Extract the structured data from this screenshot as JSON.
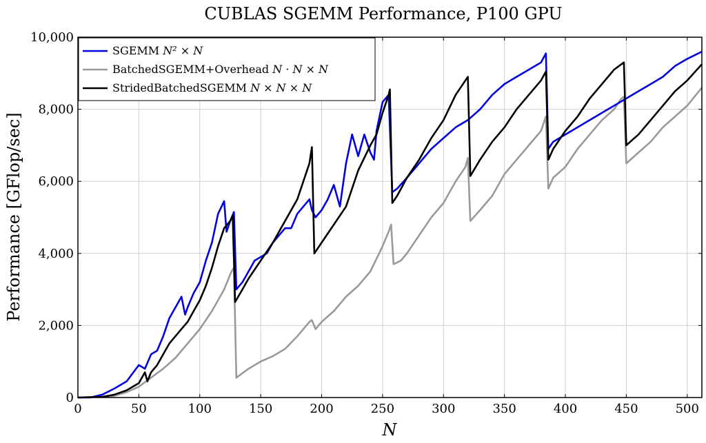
{
  "chart_data": {
    "type": "line",
    "title": "CUBLAS SGEMM Performance, P100 GPU",
    "xlabel": "N",
    "ylabel": "Performance [GFlop/sec]",
    "xlim": [
      0,
      512
    ],
    "ylim": [
      0,
      10000
    ],
    "xticks": [
      0,
      50,
      100,
      150,
      200,
      250,
      300,
      350,
      400,
      450,
      500
    ],
    "yticks": [
      0,
      2000,
      4000,
      6000,
      8000,
      10000
    ],
    "xtick_labels": [
      "0",
      "50",
      "100",
      "150",
      "200",
      "250",
      "300",
      "350",
      "400",
      "450",
      "500"
    ],
    "ytick_labels": [
      "0",
      "2,000",
      "4,000",
      "6,000",
      "8,000",
      "10,000"
    ],
    "grid": true,
    "legend_position": "top-left",
    "series": [
      {
        "name": "SGEMM N² × N",
        "name_plain": "SGEMM ",
        "name_math": "N² × N",
        "color": "#0000e0",
        "points": [
          [
            0,
            0
          ],
          [
            10,
            0
          ],
          [
            20,
            80
          ],
          [
            30,
            250
          ],
          [
            40,
            450
          ],
          [
            50,
            900
          ],
          [
            55,
            800
          ],
          [
            60,
            1200
          ],
          [
            65,
            1300
          ],
          [
            70,
            1700
          ],
          [
            75,
            2200
          ],
          [
            80,
            2500
          ],
          [
            85,
            2800
          ],
          [
            88,
            2300
          ],
          [
            90,
            2500
          ],
          [
            95,
            2900
          ],
          [
            100,
            3200
          ],
          [
            105,
            3800
          ],
          [
            110,
            4300
          ],
          [
            115,
            5100
          ],
          [
            120,
            5450
          ],
          [
            122,
            4600
          ],
          [
            125,
            4900
          ],
          [
            128,
            5150
          ],
          [
            130,
            3000
          ],
          [
            135,
            3200
          ],
          [
            140,
            3500
          ],
          [
            145,
            3800
          ],
          [
            150,
            3900
          ],
          [
            155,
            4000
          ],
          [
            160,
            4300
          ],
          [
            165,
            4500
          ],
          [
            170,
            4700
          ],
          [
            175,
            4700
          ],
          [
            180,
            5100
          ],
          [
            185,
            5300
          ],
          [
            190,
            5500
          ],
          [
            192,
            5200
          ],
          [
            195,
            5000
          ],
          [
            200,
            5200
          ],
          [
            205,
            5500
          ],
          [
            210,
            5900
          ],
          [
            215,
            5300
          ],
          [
            220,
            6500
          ],
          [
            225,
            7300
          ],
          [
            230,
            6700
          ],
          [
            235,
            7300
          ],
          [
            240,
            6800
          ],
          [
            243,
            6600
          ],
          [
            245,
            7400
          ],
          [
            250,
            8200
          ],
          [
            255,
            8400
          ],
          [
            258,
            5700
          ],
          [
            262,
            5800
          ],
          [
            270,
            6100
          ],
          [
            280,
            6500
          ],
          [
            290,
            6900
          ],
          [
            300,
            7200
          ],
          [
            310,
            7500
          ],
          [
            320,
            7700
          ],
          [
            330,
            8000
          ],
          [
            340,
            8400
          ],
          [
            350,
            8700
          ],
          [
            360,
            8900
          ],
          [
            370,
            9100
          ],
          [
            380,
            9300
          ],
          [
            384,
            9550
          ],
          [
            386,
            6900
          ],
          [
            390,
            7100
          ],
          [
            400,
            7300
          ],
          [
            410,
            7500
          ],
          [
            420,
            7700
          ],
          [
            430,
            7900
          ],
          [
            440,
            8100
          ],
          [
            450,
            8300
          ],
          [
            460,
            8500
          ],
          [
            470,
            8700
          ],
          [
            480,
            8900
          ],
          [
            490,
            9200
          ],
          [
            500,
            9400
          ],
          [
            512,
            9600
          ]
        ]
      },
      {
        "name": "BatchedSGEMM+Overhead N · N × N",
        "name_plain": "BatchedSGEMM+Overhead ",
        "name_math": "N · N × N",
        "color": "#999999",
        "points": [
          [
            0,
            0
          ],
          [
            20,
            20
          ],
          [
            30,
            50
          ],
          [
            40,
            150
          ],
          [
            50,
            300
          ],
          [
            60,
            550
          ],
          [
            70,
            800
          ],
          [
            80,
            1100
          ],
          [
            90,
            1500
          ],
          [
            100,
            1900
          ],
          [
            110,
            2400
          ],
          [
            120,
            3000
          ],
          [
            126,
            3500
          ],
          [
            128,
            3600
          ],
          [
            130,
            550
          ],
          [
            140,
            800
          ],
          [
            150,
            1000
          ],
          [
            160,
            1150
          ],
          [
            170,
            1350
          ],
          [
            180,
            1700
          ],
          [
            190,
            2100
          ],
          [
            192,
            2150
          ],
          [
            195,
            1900
          ],
          [
            200,
            2100
          ],
          [
            210,
            2400
          ],
          [
            220,
            2800
          ],
          [
            230,
            3100
          ],
          [
            240,
            3500
          ],
          [
            250,
            4200
          ],
          [
            255,
            4600
          ],
          [
            257,
            4800
          ],
          [
            259,
            3700
          ],
          [
            265,
            3800
          ],
          [
            270,
            4000
          ],
          [
            280,
            4500
          ],
          [
            290,
            5000
          ],
          [
            300,
            5400
          ],
          [
            310,
            6000
          ],
          [
            318,
            6400
          ],
          [
            320,
            6650
          ],
          [
            322,
            4900
          ],
          [
            330,
            5200
          ],
          [
            340,
            5600
          ],
          [
            350,
            6200
          ],
          [
            360,
            6600
          ],
          [
            370,
            7000
          ],
          [
            380,
            7400
          ],
          [
            384,
            7800
          ],
          [
            386,
            5800
          ],
          [
            390,
            6100
          ],
          [
            400,
            6400
          ],
          [
            410,
            6900
          ],
          [
            420,
            7300
          ],
          [
            430,
            7700
          ],
          [
            440,
            8000
          ],
          [
            446,
            8300
          ],
          [
            448,
            8350
          ],
          [
            450,
            6500
          ],
          [
            460,
            6800
          ],
          [
            470,
            7100
          ],
          [
            480,
            7500
          ],
          [
            490,
            7800
          ],
          [
            500,
            8100
          ],
          [
            512,
            8600
          ]
        ]
      },
      {
        "name": "StridedBatchedSGEMM N × N × N",
        "name_plain": "StridedBatchedSGEMM ",
        "name_math": "N × N × N",
        "color": "#000000",
        "points": [
          [
            0,
            0
          ],
          [
            20,
            20
          ],
          [
            30,
            80
          ],
          [
            40,
            200
          ],
          [
            50,
            400
          ],
          [
            55,
            700
          ],
          [
            57,
            450
          ],
          [
            60,
            700
          ],
          [
            65,
            900
          ],
          [
            70,
            1200
          ],
          [
            75,
            1500
          ],
          [
            80,
            1700
          ],
          [
            85,
            1900
          ],
          [
            90,
            2100
          ],
          [
            95,
            2400
          ],
          [
            100,
            2700
          ],
          [
            105,
            3100
          ],
          [
            110,
            3600
          ],
          [
            115,
            4200
          ],
          [
            120,
            4700
          ],
          [
            125,
            4900
          ],
          [
            127,
            5050
          ],
          [
            129,
            2650
          ],
          [
            135,
            3000
          ],
          [
            140,
            3300
          ],
          [
            150,
            3800
          ],
          [
            160,
            4300
          ],
          [
            170,
            4900
          ],
          [
            180,
            5500
          ],
          [
            190,
            6500
          ],
          [
            192,
            6950
          ],
          [
            194,
            4000
          ],
          [
            200,
            4300
          ],
          [
            210,
            4800
          ],
          [
            220,
            5300
          ],
          [
            230,
            6300
          ],
          [
            240,
            7000
          ],
          [
            245,
            7300
          ],
          [
            250,
            7900
          ],
          [
            255,
            8400
          ],
          [
            256,
            8550
          ],
          [
            258,
            5400
          ],
          [
            262,
            5600
          ],
          [
            270,
            6100
          ],
          [
            280,
            6600
          ],
          [
            290,
            7200
          ],
          [
            300,
            7700
          ],
          [
            310,
            8400
          ],
          [
            320,
            8900
          ],
          [
            322,
            6150
          ],
          [
            330,
            6600
          ],
          [
            340,
            7100
          ],
          [
            350,
            7500
          ],
          [
            360,
            8000
          ],
          [
            370,
            8400
          ],
          [
            380,
            8800
          ],
          [
            384,
            9050
          ],
          [
            386,
            6600
          ],
          [
            390,
            6900
          ],
          [
            400,
            7400
          ],
          [
            410,
            7800
          ],
          [
            420,
            8300
          ],
          [
            430,
            8700
          ],
          [
            440,
            9100
          ],
          [
            448,
            9300
          ],
          [
            450,
            7000
          ],
          [
            460,
            7300
          ],
          [
            470,
            7700
          ],
          [
            480,
            8100
          ],
          [
            490,
            8500
          ],
          [
            500,
            8800
          ],
          [
            512,
            9250
          ]
        ]
      }
    ]
  }
}
